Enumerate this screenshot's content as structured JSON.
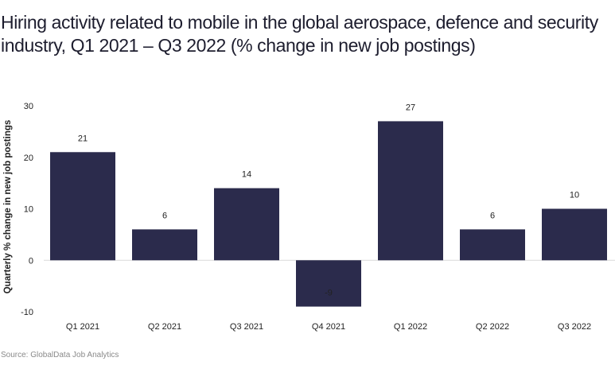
{
  "chart_data": {
    "type": "bar",
    "title": "Hiring activity related to mobile in the global aerospace, defence and security industry, Q1 2021 – Q3 2022 (% change in new job postings)",
    "xlabel": "",
    "ylabel": "Quarterly % change in new job postings",
    "categories": [
      "Q1 2021",
      "Q2 2021",
      "Q3 2021",
      "Q4 2021",
      "Q1 2022",
      "Q2 2022",
      "Q3 2022"
    ],
    "values": [
      21,
      6,
      14,
      -9,
      27,
      6,
      10
    ],
    "data_labels": [
      "21",
      "6",
      "14",
      "-9",
      "27",
      "6",
      "10"
    ],
    "ylim": [
      -10,
      30
    ],
    "yticks": [
      30,
      20,
      10,
      0,
      -10
    ],
    "ytick_labels": [
      "30",
      "20",
      "10",
      "0",
      "-10"
    ],
    "grid": false,
    "legend": "none",
    "bar_color": "#2b2b4c",
    "zero_line_color": "#d9d9d9",
    "source": "Source: GlobalData Job Analytics"
  }
}
